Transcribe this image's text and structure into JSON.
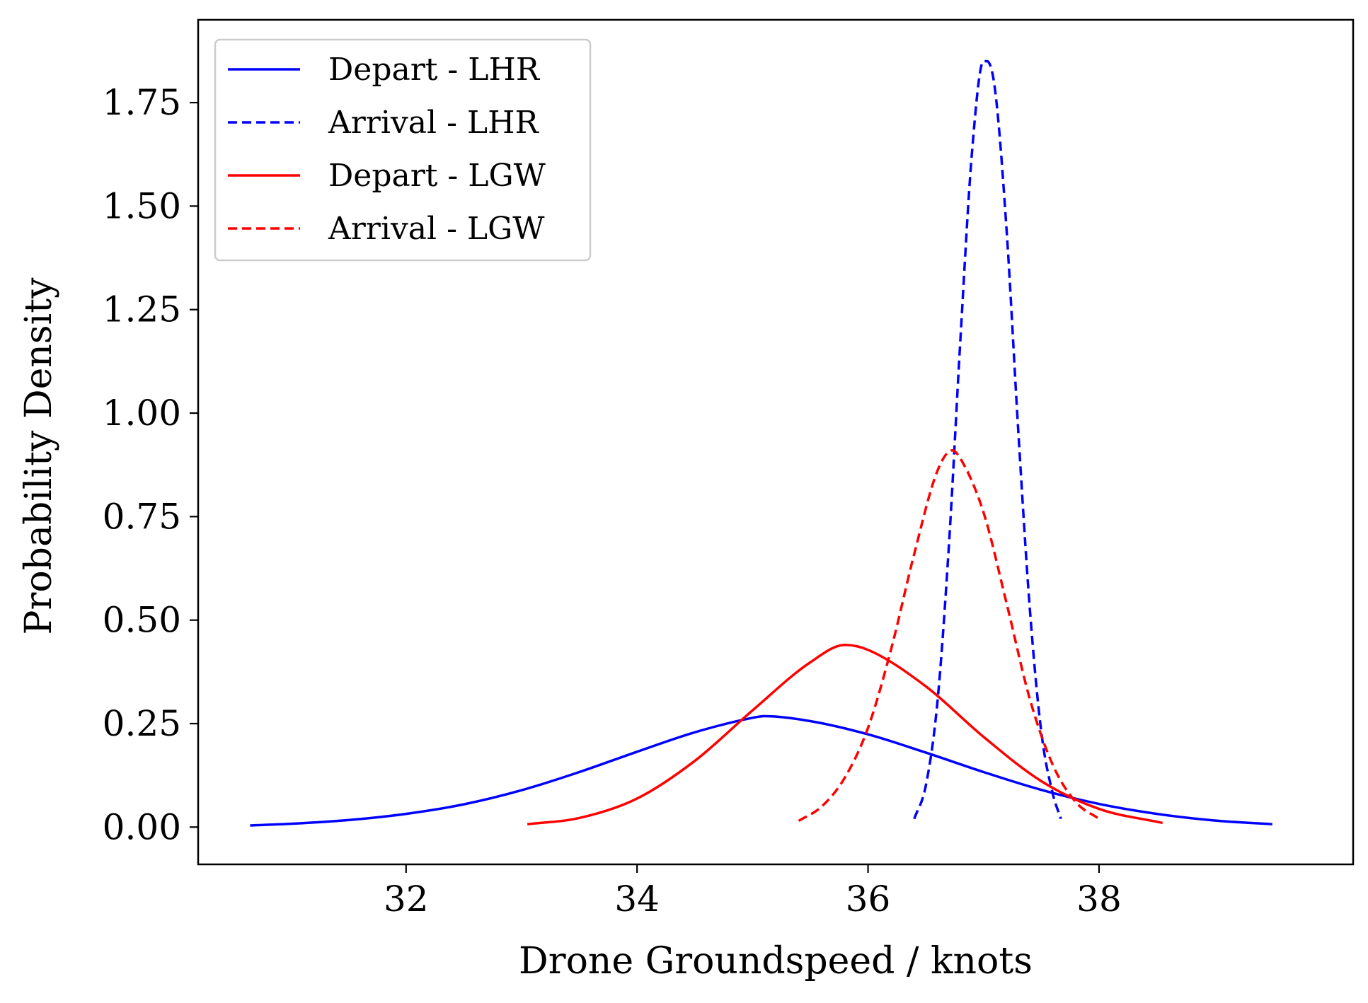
{
  "chart_data": {
    "type": "line",
    "title": "",
    "xlabel": "Drone Groundspeed / knots",
    "ylabel": "Probability Density",
    "xlim": [
      30.2,
      40.2
    ],
    "ylim": [
      -0.09,
      1.95
    ],
    "xticks": [
      32,
      34,
      36,
      38
    ],
    "xtick_labels": [
      "32",
      "34",
      "36",
      "38"
    ],
    "yticks": [
      0.0,
      0.25,
      0.5,
      0.75,
      1.0,
      1.25,
      1.5,
      1.75
    ],
    "ytick_labels": [
      "0.00",
      "0.25",
      "0.50",
      "0.75",
      "1.00",
      "1.25",
      "1.50",
      "1.75"
    ],
    "grid": false,
    "legend_position": "top-left",
    "series": [
      {
        "name": "Depart - LHR",
        "color": "#0000ff",
        "dash": "solid",
        "x": [
          30.65,
          31.0,
          31.5,
          32.0,
          32.5,
          33.0,
          33.5,
          34.0,
          34.5,
          35.0,
          35.1,
          35.5,
          36.0,
          36.5,
          37.0,
          37.5,
          38.0,
          38.5,
          39.0,
          39.5
        ],
        "y": [
          0.004,
          0.008,
          0.017,
          0.032,
          0.055,
          0.089,
          0.133,
          0.182,
          0.229,
          0.264,
          0.268,
          0.256,
          0.224,
          0.18,
          0.133,
          0.09,
          0.056,
          0.032,
          0.016,
          0.007
        ]
      },
      {
        "name": "Arrival - LHR",
        "color": "#0000ff",
        "dash": "dashed",
        "x": [
          36.4,
          36.5,
          36.6,
          36.7,
          36.8,
          36.9,
          37.0,
          37.03,
          37.1,
          37.2,
          37.3,
          37.4,
          37.5,
          37.6,
          37.67
        ],
        "y": [
          0.02,
          0.1,
          0.3,
          0.68,
          1.18,
          1.63,
          1.85,
          1.85,
          1.78,
          1.44,
          0.96,
          0.53,
          0.23,
          0.08,
          0.02
        ]
      },
      {
        "name": "Depart - LGW",
        "color": "#ff0000",
        "dash": "solid",
        "x": [
          33.05,
          33.5,
          34.0,
          34.5,
          35.0,
          35.5,
          35.8,
          36.0,
          36.5,
          37.0,
          37.5,
          38.0,
          38.55
        ],
        "y": [
          0.007,
          0.022,
          0.069,
          0.16,
          0.282,
          0.398,
          0.44,
          0.428,
          0.34,
          0.218,
          0.111,
          0.044,
          0.01
        ]
      },
      {
        "name": "Arrival - LGW",
        "color": "#ff0000",
        "dash": "dashed",
        "x": [
          35.4,
          35.6,
          35.8,
          36.0,
          36.2,
          36.4,
          36.6,
          36.73,
          36.8,
          37.0,
          37.2,
          37.4,
          37.6,
          37.8,
          38.0
        ],
        "y": [
          0.015,
          0.05,
          0.12,
          0.24,
          0.43,
          0.66,
          0.86,
          0.91,
          0.89,
          0.76,
          0.54,
          0.31,
          0.15,
          0.06,
          0.02
        ]
      }
    ]
  }
}
